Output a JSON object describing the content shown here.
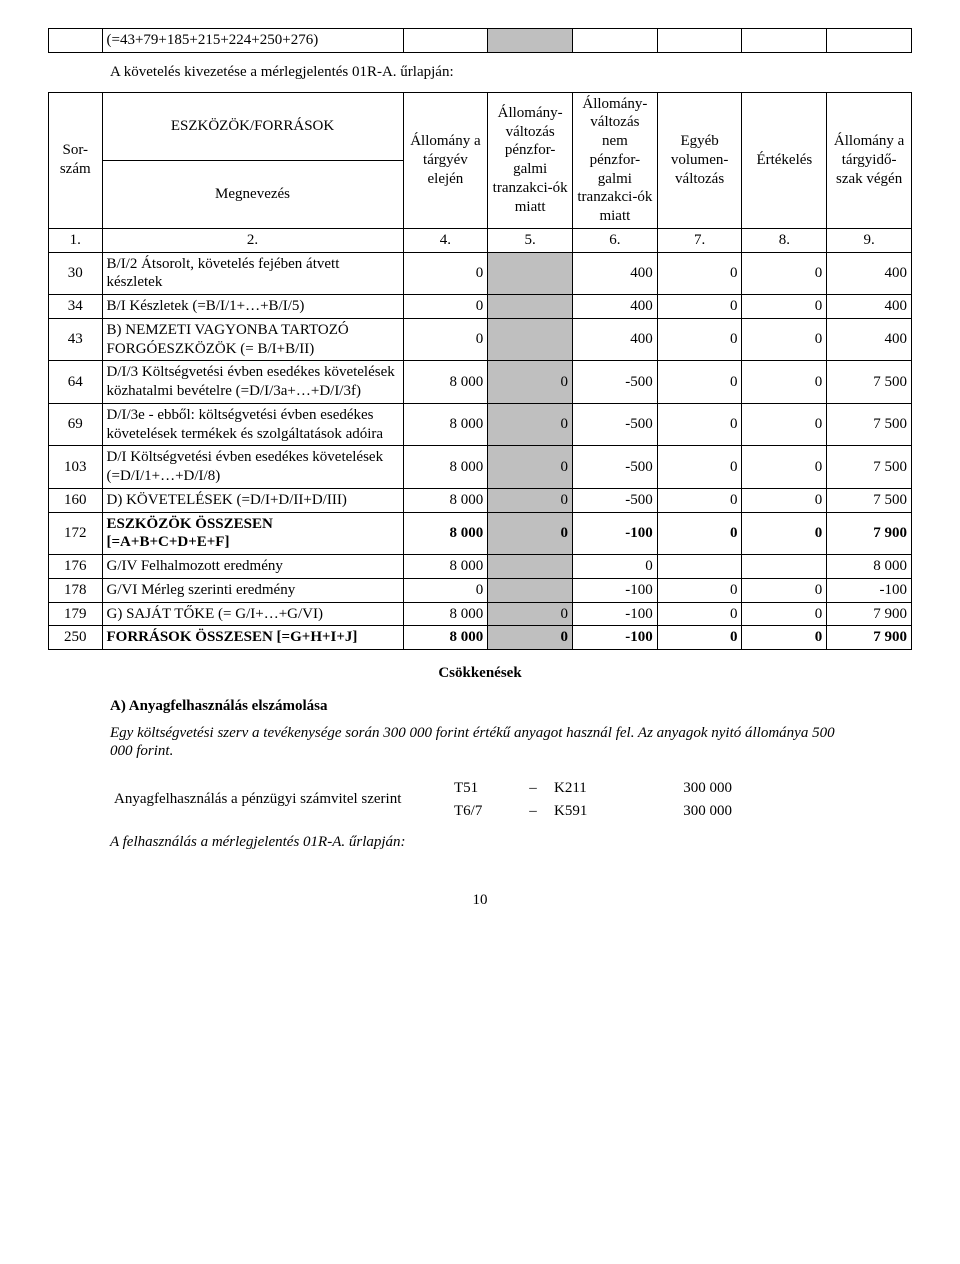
{
  "top_table": {
    "cell_text": "(=43+79+185+215+224+250+276)"
  },
  "intro_line": "A követelés kivezetése a mérlegjelentés 01R-A. űrlapján:",
  "main_table": {
    "header": {
      "sorszam": "Sor-szám",
      "eszkozok": "ESZKÖZÖK/FORRÁSOK",
      "megnevezes": "Megnevezés",
      "allomany_elejen": "Állomány a tárgyév elején",
      "valtozas_penz": "Állomány-változás pénzfor-galmi tranzakci-ók miatt",
      "valtozas_nem": "Állomány-változás nem pénzfor-galmi tranzakci-ók miatt",
      "egyeb": "Egyéb volumen-változás",
      "ertekeles": "Értékelés",
      "allomany_vegen": "Állomány a tárgyidő-szak végén"
    },
    "colnums": [
      "1.",
      "2.",
      "4.",
      "5.",
      "6.",
      "7.",
      "8.",
      "9."
    ],
    "rows": [
      {
        "n": "30",
        "label": "B/I/2 Átsorolt, követelés fejében átvett készletek",
        "c4": "0",
        "c5": "",
        "c6": "400",
        "c7": "0",
        "c8": "0",
        "c9": "400",
        "bold": false
      },
      {
        "n": "34",
        "label": "B/I Készletek (=B/I/1+…+B/I/5)",
        "c4": "0",
        "c5": "",
        "c6": "400",
        "c7": "0",
        "c8": "0",
        "c9": "400",
        "bold": false
      },
      {
        "n": "43",
        "label": "B) NEMZETI VAGYONBA TARTOZÓ FORGÓESZKÖZÖK (= B/I+B/II)",
        "c4": "0",
        "c5": "",
        "c6": "400",
        "c7": "0",
        "c8": "0",
        "c9": "400",
        "bold": false
      },
      {
        "n": "64",
        "label": "D/I/3 Költségvetési évben esedékes követelések közhatalmi bevételre (=D/I/3a+…+D/I/3f)",
        "c4": "8 000",
        "c5": "0",
        "c6": "-500",
        "c7": "0",
        "c8": "0",
        "c9": "7 500",
        "bold": false
      },
      {
        "n": "69",
        "label": "D/I/3e - ebből: költségvetési évben esedékes követelések termékek és szolgáltatások adóira",
        "c4": "8 000",
        "c5": "0",
        "c6": "-500",
        "c7": "0",
        "c8": "0",
        "c9": "7 500",
        "bold": false
      },
      {
        "n": "103",
        "label": "D/I Költségvetési évben esedékes követelések (=D/I/1+…+D/I/8)",
        "c4": "8 000",
        "c5": "0",
        "c6": "-500",
        "c7": "0",
        "c8": "0",
        "c9": "7 500",
        "bold": false
      },
      {
        "n": "160",
        "label": "D) KÖVETELÉSEK (=D/I+D/II+D/III)",
        "c4": "8 000",
        "c5": "0",
        "c6": "-500",
        "c7": "0",
        "c8": "0",
        "c9": "7 500",
        "bold": false
      },
      {
        "n": "172",
        "label": "ESZKÖZÖK ÖSSZESEN [=A+B+C+D+E+F]",
        "c4": "8 000",
        "c5": "0",
        "c6": "-100",
        "c7": "0",
        "c8": "0",
        "c9": "7 900",
        "bold": true
      },
      {
        "n": "176",
        "label": "G/IV Felhalmozott eredmény",
        "c4": "8 000",
        "c5": "",
        "c6": "0",
        "c7": "",
        "c8": "",
        "c9": "8 000",
        "bold": false
      },
      {
        "n": "178",
        "label": "G/VI Mérleg szerinti eredmény",
        "c4": "0",
        "c5": "",
        "c6": "-100",
        "c7": "0",
        "c8": "0",
        "c9": "-100",
        "bold": false
      },
      {
        "n": "179",
        "label": "G) SAJÁT TŐKE (= G/I+…+G/VI)",
        "c4": "8 000",
        "c5": "0",
        "c6": "-100",
        "c7": "0",
        "c8": "0",
        "c9": "7 900",
        "bold": false
      },
      {
        "n": "250",
        "label": "FORRÁSOK ÖSSZESEN [=G+H+I+J]",
        "c4": "8 000",
        "c5": "0",
        "c6": "-100",
        "c7": "0",
        "c8": "0",
        "c9": "7 900",
        "bold": true
      }
    ]
  },
  "csokkenes_title": "Csökkenések",
  "section_a_title": "A) Anyagfelhasználás elszámolása",
  "section_a_para": "Egy költségvetési szerv a tevékenysége során 300 000 forint értékű anyagot használ fel. Az anyagok nyitó állománya 500 000 forint.",
  "ledger": {
    "label": "Anyagfelhasználás a pénzügyi számvitel szerint",
    "rows": [
      {
        "a": "T51",
        "dash": "–",
        "b": "K211",
        "val": "300 000"
      },
      {
        "a": "T6/7",
        "dash": "–",
        "b": "K591",
        "val": "300 000"
      }
    ]
  },
  "closing_line": "A felhasználás a mérlegjelentés 01R-A. űrlapján:",
  "page_number": "10"
}
